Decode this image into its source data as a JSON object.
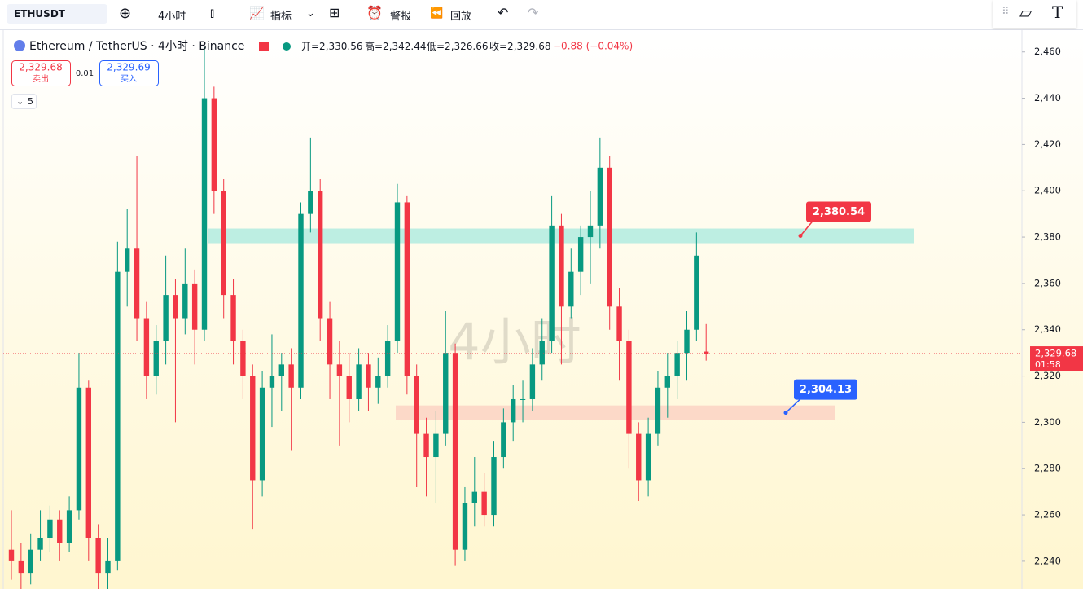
{
  "toolbar": {
    "symbol": "ETHUSDT",
    "interval": "4小时",
    "indicators": "指标",
    "alert": "警报",
    "replay": "回放"
  },
  "legend": {
    "name": "Ethereum / TetherUS · 4小时 · Binance",
    "open": "开=2,330.56",
    "high": "高=2,342.44",
    "low": "低=2,326.66",
    "close": "收=2,329.68",
    "change": "−0.88 (−0.04%)"
  },
  "trade": {
    "sell_price": "2,329.68",
    "sell": "卖出",
    "spread": "0.01",
    "buy_price": "2,329.69",
    "buy": "买入",
    "volume": "5"
  },
  "watermark": "4小时",
  "countdown": "01:58",
  "chart_data": {
    "type": "candlestick",
    "up_color": "#089981",
    "down_color": "#f23645",
    "ylim": [
      2228,
      2468
    ],
    "yticks": [
      {
        "value": 2240,
        "label": "2,240"
      },
      {
        "value": 2260,
        "label": "2,260"
      },
      {
        "value": 2280,
        "label": "2,280"
      },
      {
        "value": 2300,
        "label": "2,300"
      },
      {
        "value": 2320,
        "label": "2,320"
      },
      {
        "value": 2340,
        "label": "2,340"
      },
      {
        "value": 2360,
        "label": "2,360"
      },
      {
        "value": 2380,
        "label": "2,380"
      },
      {
        "value": 2400,
        "label": "2,400"
      },
      {
        "value": 2420,
        "label": "2,420"
      },
      {
        "value": 2440,
        "label": "2,440"
      },
      {
        "value": 2460,
        "label": "2,460"
      }
    ],
    "last_label": "2,329.68",
    "open": [
      2245,
      2240,
      2235,
      2245,
      2250,
      2258,
      2248,
      2262,
      2315,
      2250,
      2235,
      2240,
      2365,
      2375,
      2345,
      2320,
      2335,
      2355,
      2345,
      2360,
      2340,
      2440,
      2400,
      2355,
      2335,
      2320,
      2275,
      2315,
      2320,
      2325,
      2315,
      2390,
      2400,
      2345,
      2325,
      2320,
      2310,
      2325,
      2315,
      2320,
      2335,
      2395,
      2320,
      2295,
      2285,
      2295,
      2330,
      2245,
      2265,
      2270,
      2260,
      2285,
      2300,
      2310,
      2310,
      2325,
      2335,
      2385,
      2350,
      2365,
      2380,
      2385,
      2410,
      2350,
      2335,
      2295,
      2275,
      2295,
      2315,
      2320,
      2330,
      2340,
      2330.56
    ],
    "high": [
      2262,
      2248,
      2252,
      2262,
      2264,
      2262,
      2268,
      2330,
      2318,
      2256,
      2250,
      2378,
      2392,
      2415,
      2352,
      2342,
      2372,
      2362,
      2375,
      2366,
      2462,
      2445,
      2405,
      2362,
      2340,
      2325,
      2322,
      2338,
      2330,
      2332,
      2395,
      2423,
      2405,
      2352,
      2335,
      2330,
      2332,
      2330,
      2328,
      2342,
      2403,
      2398,
      2325,
      2302,
      2305,
      2348,
      2334,
      2272,
      2285,
      2278,
      2292,
      2306,
      2316,
      2318,
      2332,
      2345,
      2398,
      2390,
      2375,
      2385,
      2400,
      2423,
      2415,
      2358,
      2340,
      2300,
      2302,
      2322,
      2330,
      2335,
      2348,
      2382,
      2342.44
    ],
    "low": [
      2232,
      2228,
      2230,
      2240,
      2244,
      2240,
      2244,
      2258,
      2240,
      2228,
      2228,
      2236,
      2350,
      2335,
      2310,
      2312,
      2325,
      2300,
      2338,
      2325,
      2335,
      2390,
      2345,
      2325,
      2310,
      2254,
      2268,
      2298,
      2305,
      2288,
      2310,
      2382,
      2335,
      2310,
      2290,
      2300,
      2305,
      2305,
      2308,
      2315,
      2330,
      2312,
      2272,
      2268,
      2265,
      2290,
      2238,
      2240,
      2255,
      2255,
      2255,
      2280,
      2292,
      2300,
      2305,
      2318,
      2330,
      2325,
      2345,
      2355,
      2360,
      2375,
      2340,
      2318,
      2280,
      2266,
      2268,
      2290,
      2302,
      2310,
      2318,
      2335,
      2326.66
    ],
    "close": [
      2240,
      2235,
      2245,
      2250,
      2258,
      2248,
      2262,
      2315,
      2250,
      2235,
      2240,
      2365,
      2375,
      2345,
      2320,
      2335,
      2355,
      2345,
      2360,
      2340,
      2440,
      2400,
      2355,
      2335,
      2320,
      2275,
      2315,
      2320,
      2325,
      2315,
      2390,
      2400,
      2345,
      2325,
      2320,
      2310,
      2325,
      2315,
      2320,
      2335,
      2395,
      2320,
      2295,
      2285,
      2295,
      2330,
      2245,
      2265,
      2270,
      2260,
      2285,
      2300,
      2310,
      2310,
      2325,
      2335,
      2385,
      2350,
      2365,
      2380,
      2385,
      2410,
      2350,
      2335,
      2295,
      2275,
      2295,
      2315,
      2320,
      2330,
      2340,
      2372,
      2329.68
    ],
    "annotations": [
      {
        "label": "2,380.54",
        "value": 2380.54,
        "color": "#f23645",
        "zone": "#b2ebdf"
      },
      {
        "label": "2,304.13",
        "value": 2304.13,
        "color": "#2962ff",
        "zone": "#fbd3c4"
      }
    ]
  }
}
